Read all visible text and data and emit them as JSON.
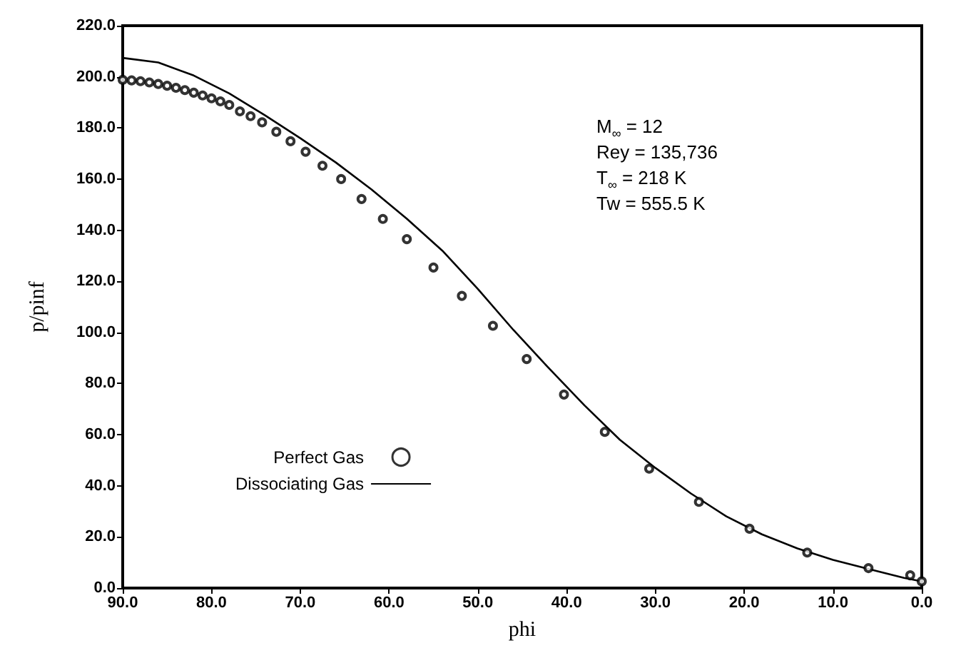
{
  "chart_data": {
    "type": "scatter",
    "xlabel": "phi",
    "ylabel": "p/pinf",
    "xlim": [
      90,
      0
    ],
    "ylim": [
      0,
      220
    ],
    "xticks": [
      {
        "value": 90,
        "label": "90.0"
      },
      {
        "value": 80,
        "label": "80.0"
      },
      {
        "value": 70,
        "label": "70.0"
      },
      {
        "value": 60,
        "label": "60.0"
      },
      {
        "value": 50,
        "label": "50.0"
      },
      {
        "value": 40,
        "label": "40.0"
      },
      {
        "value": 30,
        "label": "30.0"
      },
      {
        "value": 20,
        "label": "20.0"
      },
      {
        "value": 10,
        "label": "10.0"
      },
      {
        "value": 0,
        "label": "0.0"
      }
    ],
    "yticks": [
      {
        "value": 0,
        "label": "0.0"
      },
      {
        "value": 20,
        "label": "20.0"
      },
      {
        "value": 40,
        "label": "40.0"
      },
      {
        "value": 60,
        "label": "60.0"
      },
      {
        "value": 80,
        "label": "80.0"
      },
      {
        "value": 100,
        "label": "100.0"
      },
      {
        "value": 120,
        "label": "120.0"
      },
      {
        "value": 140,
        "label": "140.0"
      },
      {
        "value": 160,
        "label": "160.0"
      },
      {
        "value": 180,
        "label": "180.0"
      },
      {
        "value": 200,
        "label": "200.0"
      },
      {
        "value": 220,
        "label": "220.0"
      }
    ],
    "grid": false,
    "legend": "bottom left",
    "series": [
      {
        "name": "Perfect Gas",
        "marker": "circle",
        "color": "#000000",
        "x": [
          90,
          89,
          88,
          87,
          86,
          85,
          84,
          83,
          82,
          81,
          80,
          79,
          78,
          76.8,
          75.6,
          74.3,
          72.7,
          71.1,
          69.4,
          67.5,
          65.4,
          63.1,
          60.7,
          58.0,
          55.0,
          51.8,
          48.3,
          44.5,
          40.3,
          35.7,
          30.7,
          25.1,
          19.4,
          12.9,
          6.0,
          1.3,
          0
        ],
        "values": [
          198.8,
          198.6,
          198.3,
          197.8,
          197.2,
          196.5,
          195.7,
          194.8,
          193.8,
          192.7,
          191.6,
          190.4,
          189,
          186.5,
          184.6,
          182.2,
          178.5,
          174.8,
          170.7,
          165.2,
          160,
          152.2,
          144.4,
          136.5,
          125.4,
          114.3,
          102.6,
          89.6,
          75.7,
          61.1,
          46.7,
          33.7,
          23.2,
          13.9,
          7.8,
          5,
          2.6
        ]
      },
      {
        "name": "Dissociating Gas",
        "type": "line",
        "marker": "none",
        "line_style": "solid",
        "color": "#000000",
        "x": [
          90,
          86,
          82,
          78,
          74,
          70,
          66,
          62,
          58,
          54,
          50,
          46,
          42,
          38,
          34,
          30,
          26,
          22,
          18,
          14,
          10,
          6,
          2,
          0
        ],
        "values": [
          207.4,
          205.6,
          200.5,
          193.5,
          185,
          176,
          166.5,
          156,
          144.5,
          132,
          117,
          101,
          86,
          71.5,
          58,
          47,
          37,
          28,
          21,
          15.5,
          11,
          7.5,
          4,
          2.6
        ]
      }
    ],
    "annotations": [
      "M$_{∞}$ = 12",
      "Rey = 135,736",
      "T$_{∞}$ = 218 K",
      "Tw = 555.5 K"
    ]
  }
}
